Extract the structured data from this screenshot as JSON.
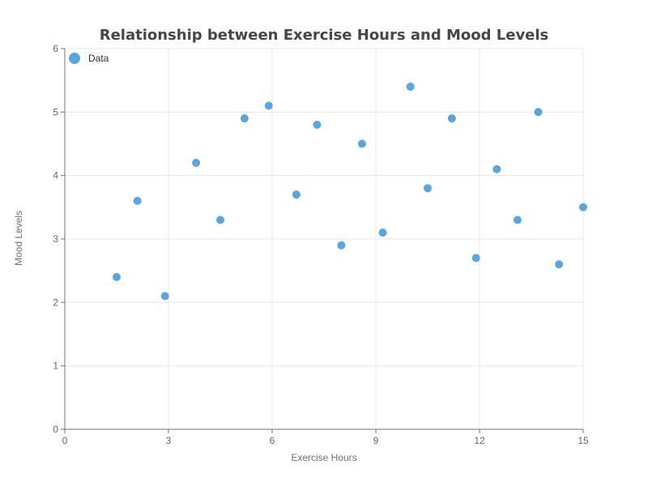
{
  "chart_data": {
    "type": "scatter",
    "title": "Relationship between Exercise Hours and Mood Levels",
    "xlabel": "Exercise Hours",
    "ylabel": "Mood Levels",
    "xlim": [
      0,
      15
    ],
    "ylim": [
      0,
      6
    ],
    "xticks": [
      0,
      3,
      6,
      9,
      12,
      15
    ],
    "yticks": [
      0,
      1,
      2,
      3,
      4,
      5,
      6
    ],
    "grid": true,
    "legend_position": "top-left",
    "series": [
      {
        "name": "Data",
        "color": "#5aa5dc",
        "points": [
          {
            "x": 1.5,
            "y": 2.4
          },
          {
            "x": 2.1,
            "y": 3.6
          },
          {
            "x": 2.9,
            "y": 2.1
          },
          {
            "x": 3.8,
            "y": 4.2
          },
          {
            "x": 4.5,
            "y": 3.3
          },
          {
            "x": 5.2,
            "y": 4.9
          },
          {
            "x": 5.9,
            "y": 5.1
          },
          {
            "x": 6.7,
            "y": 3.7
          },
          {
            "x": 7.3,
            "y": 4.8
          },
          {
            "x": 8.0,
            "y": 2.9
          },
          {
            "x": 8.6,
            "y": 4.5
          },
          {
            "x": 9.2,
            "y": 3.1
          },
          {
            "x": 10.0,
            "y": 5.4
          },
          {
            "x": 10.5,
            "y": 3.8
          },
          {
            "x": 11.2,
            "y": 4.9
          },
          {
            "x": 11.9,
            "y": 2.7
          },
          {
            "x": 12.5,
            "y": 4.1
          },
          {
            "x": 13.1,
            "y": 3.3
          },
          {
            "x": 13.7,
            "y": 5.0
          },
          {
            "x": 14.3,
            "y": 2.6
          },
          {
            "x": 15.0,
            "y": 3.5
          }
        ]
      }
    ]
  }
}
